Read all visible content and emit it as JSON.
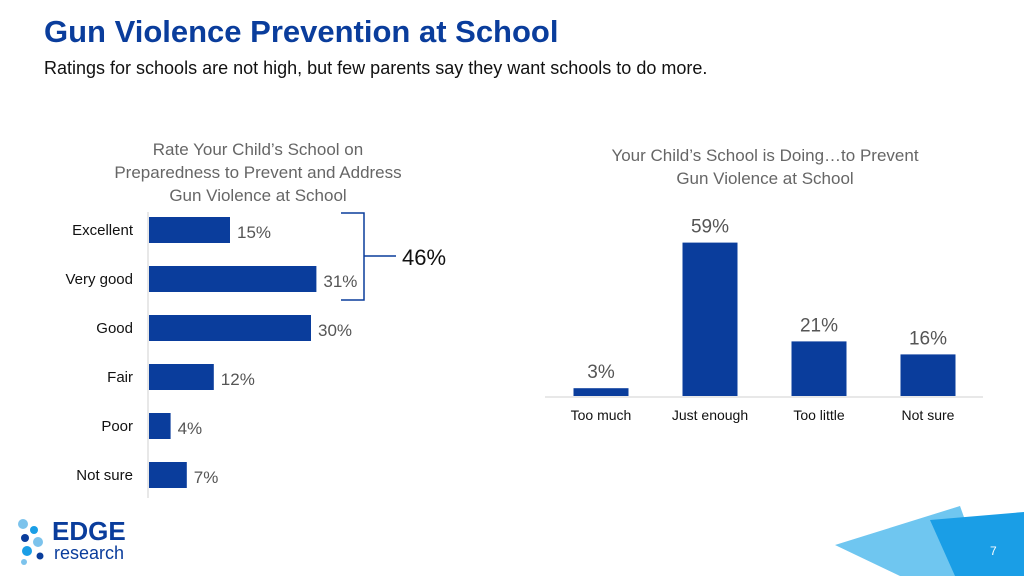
{
  "header": {
    "title": "Gun Violence Prevention at School",
    "subtitle": "Ratings for schools are not high, but few parents say they want schools to do more."
  },
  "bracket": {
    "label": "46%"
  },
  "logo": {
    "line1": "EDGE",
    "line2": "research"
  },
  "page_number": "7",
  "colors": {
    "bar": "#0a3d9c",
    "title": "#0a3d9c",
    "accent": "#1a9ee6"
  },
  "chart_data": [
    {
      "type": "bar",
      "orientation": "horizontal",
      "title": "Rate Your Child’s School on Preparedness to Prevent and Address Gun Violence at School",
      "categories": [
        "Excellent",
        "Very good",
        "Good",
        "Fair",
        "Poor",
        "Not sure"
      ],
      "values": [
        15,
        31,
        30,
        12,
        4,
        7
      ],
      "value_labels": [
        "15%",
        "31%",
        "30%",
        "12%",
        "4%",
        "7%"
      ],
      "xlim": [
        0,
        100
      ]
    },
    {
      "type": "bar",
      "orientation": "vertical",
      "title": "Your Child’s School is Doing…to Prevent Gun Violence at School",
      "categories": [
        "Too much",
        "Just enough",
        "Too little",
        "Not sure"
      ],
      "values": [
        3,
        59,
        21,
        16
      ],
      "value_labels": [
        "3%",
        "59%",
        "21%",
        "16%"
      ],
      "ylim": [
        0,
        100
      ]
    }
  ]
}
